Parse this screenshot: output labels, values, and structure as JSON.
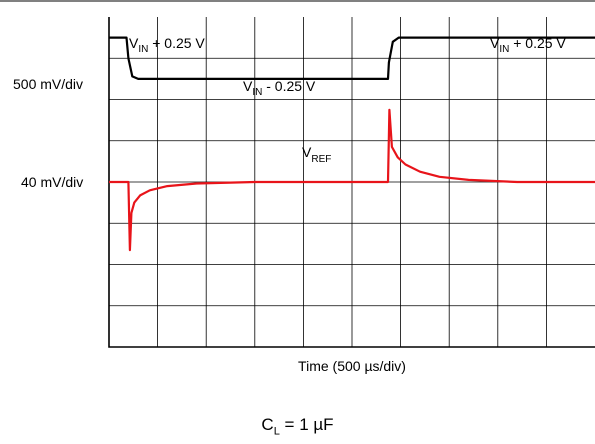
{
  "chart_data": {
    "type": "line",
    "title": "",
    "xlabel": "Time (500 µs/div)",
    "ylabel": "",
    "grid": true,
    "x_units": "µs",
    "x_divisions": 10,
    "y_divisions": 8,
    "x_per_div_us": 500,
    "series": [
      {
        "name": "V_IN",
        "scale": "500 mV/div",
        "color": "#000000",
        "x": [
          0,
          180,
          200,
          240,
          300,
          1000,
          2000,
          2870,
          2880,
          2920,
          2980,
          3500,
          4500,
          5000
        ],
        "values": [
          0.25,
          0.25,
          0.0,
          -0.22,
          -0.25,
          -0.25,
          -0.25,
          -0.25,
          -0.05,
          0.2,
          0.25,
          0.25,
          0.25,
          0.25
        ]
      },
      {
        "name": "V_REF",
        "scale": "40 mV/div",
        "color": "#e8141a",
        "x": [
          0,
          200,
          215,
          230,
          260,
          320,
          420,
          600,
          900,
          1500,
          2860,
          2870,
          2885,
          2910,
          2970,
          3050,
          3200,
          3400,
          3700,
          4200,
          5000
        ],
        "values": [
          0,
          0,
          -66,
          -30,
          -20,
          -13,
          -8,
          -4,
          -1.5,
          0,
          0,
          0,
          70,
          34,
          24,
          17,
          10,
          5,
          2,
          0,
          0
        ]
      }
    ],
    "annotations": {
      "vin_high_left": {
        "main": "V",
        "sub": "IN",
        "tail": " + 0.25 V"
      },
      "vin_high_right": {
        "main": "V",
        "sub": "IN",
        "tail": " + 0.25 V"
      },
      "vin_low": {
        "main": "V",
        "sub": "IN",
        "tail": " - 0.25 V"
      },
      "vref": {
        "main": "V",
        "sub": "REF"
      }
    },
    "channel_labels": {
      "ch1": "500 mV/div",
      "ch2": "40 mV/div"
    }
  },
  "caption": {
    "main": "C",
    "sub": "L",
    "tail": " = 1 µF"
  },
  "colors": {
    "vin": "#000000",
    "vref": "#e8141a",
    "grid": "#000000"
  }
}
